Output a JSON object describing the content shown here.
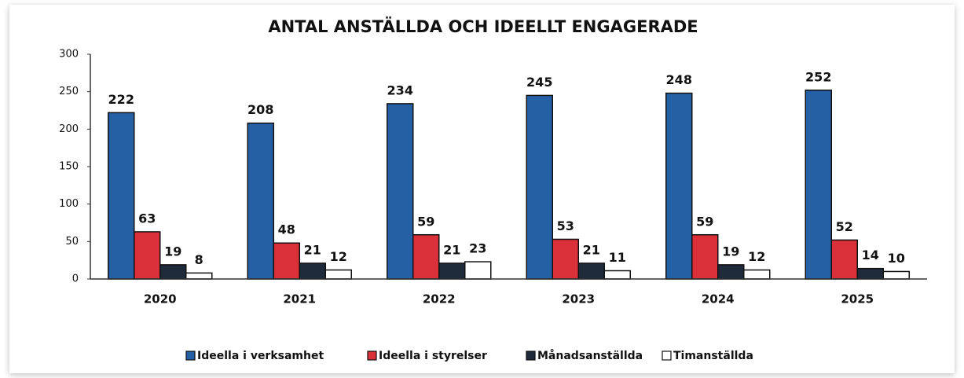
{
  "chart_data": {
    "type": "bar",
    "title": "ANTAL ANSTÄLLDA OCH IDEELLT ENGAGERADE",
    "categories": [
      "2020",
      "2021",
      "2022",
      "2023",
      "2024",
      "2025"
    ],
    "series": [
      {
        "name": "Ideella i verksamhet",
        "color": "#2660a4",
        "values": [
          222,
          208,
          234,
          245,
          248,
          252
        ]
      },
      {
        "name": "Ideella i styrelser",
        "color": "#d9303a",
        "values": [
          63,
          48,
          59,
          53,
          59,
          52
        ]
      },
      {
        "name": "Månadsanställda",
        "color": "#1f2a3a",
        "values": [
          19,
          21,
          21,
          21,
          19,
          14
        ]
      },
      {
        "name": "Timanställda",
        "color": "#ffffff",
        "values": [
          8,
          12,
          23,
          11,
          12,
          10
        ]
      }
    ],
    "ylim": [
      0,
      300
    ],
    "yticks": [
      0,
      50,
      100,
      150,
      200,
      250,
      300
    ],
    "grid": false,
    "legend": "bottom"
  }
}
